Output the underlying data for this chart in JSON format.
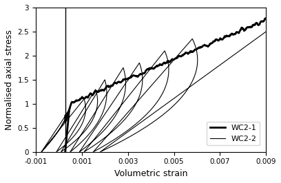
{
  "xlabel": "Volumetric strain",
  "ylabel": "Normalised axial stress",
  "xlim": [
    -0.001,
    0.009
  ],
  "ylim": [
    0,
    3
  ],
  "xticks": [
    -0.001,
    0.001,
    0.003,
    0.005,
    0.007,
    0.009
  ],
  "yticks": [
    0,
    0.5,
    1,
    1.5,
    2,
    2.5,
    3
  ],
  "legend_labels": [
    "WC2-1",
    "WC2-2"
  ],
  "wc21_color": "#000000",
  "wc22_color": "#000000",
  "wc21_lw": 2.0,
  "wc22_lw": 0.8,
  "background": "#ffffff",
  "vline_x": 0.00028,
  "figsize": [
    4.08,
    2.66
  ],
  "dpi": 100
}
